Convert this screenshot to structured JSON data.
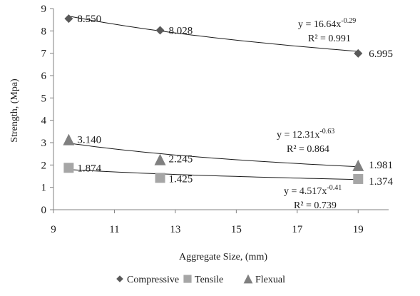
{
  "chart_data": {
    "type": "scatter",
    "title": "",
    "xlabel": "Aggregate Size, (mm)",
    "ylabel": "Strength, (Mpa)",
    "xlim": [
      9,
      20
    ],
    "ylim": [
      0,
      9
    ],
    "xticks": [
      "9",
      "11",
      "13",
      "15",
      "17",
      "19"
    ],
    "yticks": [
      "0",
      "1",
      "2",
      "3",
      "4",
      "5",
      "6",
      "7",
      "8",
      "9"
    ],
    "grid": false,
    "legend_position": "bottom",
    "series": [
      {
        "name": "Compressive",
        "marker": "diamond",
        "color": "#595959",
        "x": [
          9.5,
          12.5,
          19
        ],
        "y": [
          8.55,
          8.028,
          6.995
        ],
        "labels": [
          "8.550",
          "8.028",
          "6.995"
        ],
        "trendline": {
          "equation": "y = 16.64x",
          "exponent": "-0.29",
          "r2": "R² = 0.991",
          "a": 16.64,
          "b": -0.29
        }
      },
      {
        "name": "Tensile",
        "marker": "square",
        "color": "#a6a6a6",
        "x": [
          9.5,
          12.5,
          19
        ],
        "y": [
          1.874,
          1.425,
          1.374
        ],
        "labels": [
          "1.874",
          "1.425",
          "1.374"
        ],
        "trendline": {
          "equation": "y = 4.517x",
          "exponent": "-0.41",
          "r2": "R² = 0.739",
          "a": 4.517,
          "b": -0.41
        }
      },
      {
        "name": "Flexual",
        "marker": "triangle",
        "color": "#808080",
        "x": [
          9.5,
          12.5,
          19
        ],
        "y": [
          3.14,
          2.245,
          1.981
        ],
        "labels": [
          "3.140",
          "2.245",
          "1.981"
        ],
        "trendline": {
          "equation": "y = 12.31x",
          "exponent": "-0.63",
          "r2": "R² = 0.864",
          "a": 12.31,
          "b": -0.63
        }
      }
    ]
  }
}
